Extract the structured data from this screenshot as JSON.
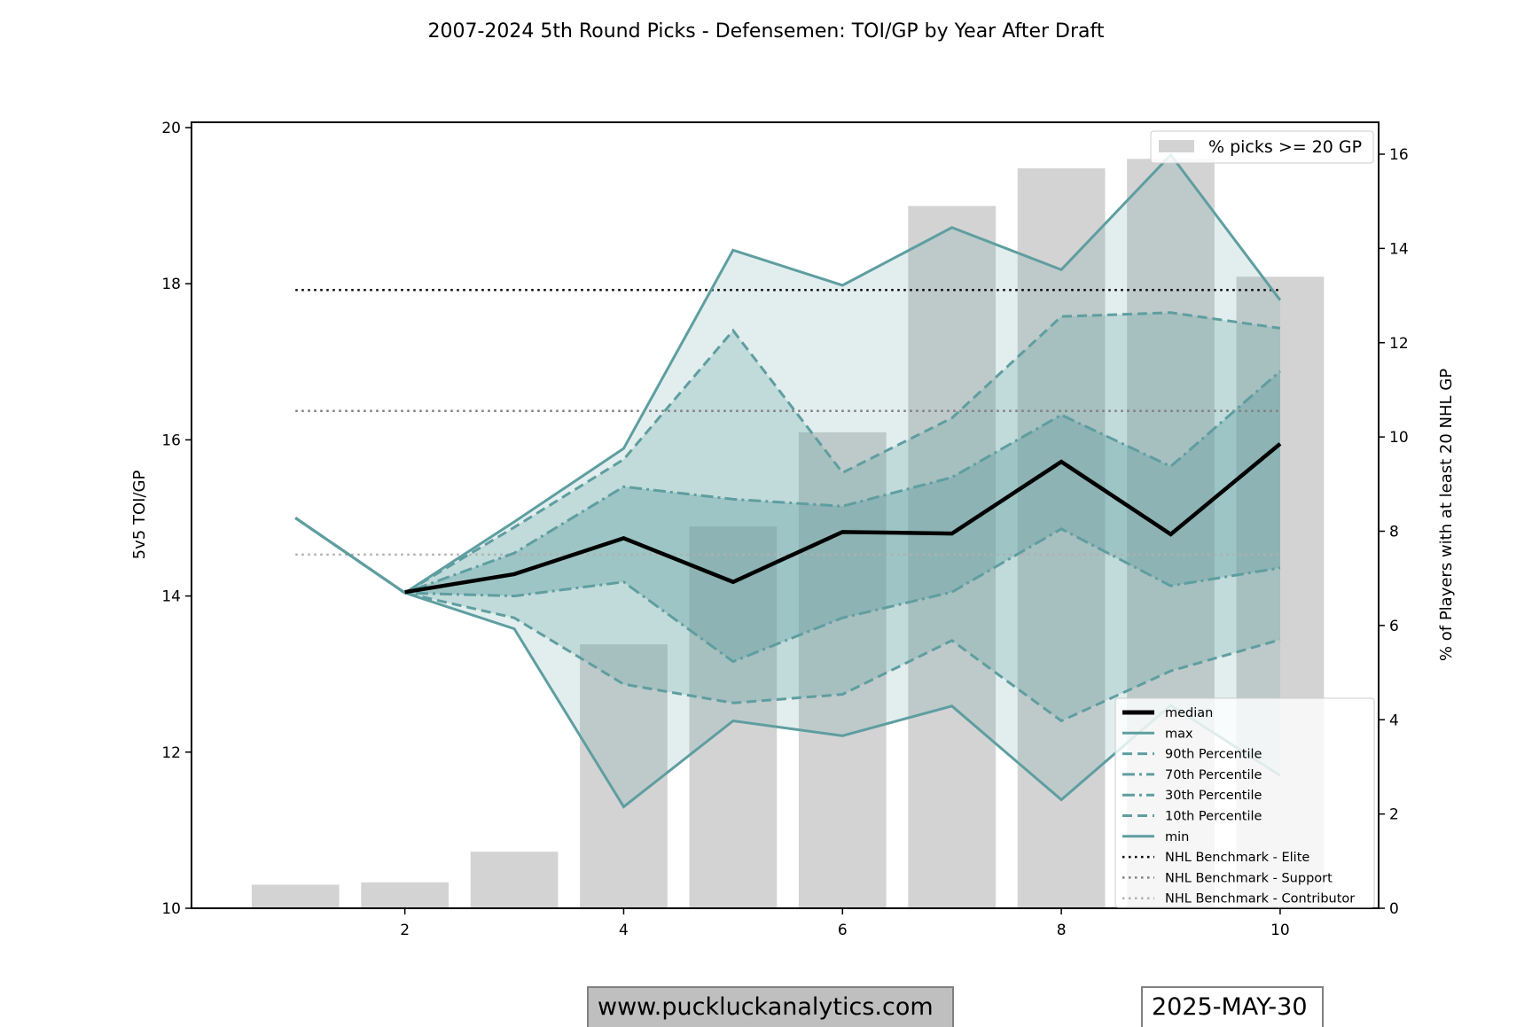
{
  "chart_data": {
    "type": "line",
    "title": "2007-2024 5th Round Picks - Defensemen: TOI/GP by Year After Draft",
    "xlabel": "",
    "ylabel": "5v5 TOI/GP",
    "y2label": "% of Players with at least 20 NHL GP",
    "xlim": [
      0.05,
      10.9
    ],
    "ylim": [
      10,
      20
    ],
    "y2lim": [
      0,
      16.6
    ],
    "xticks": [
      2,
      4,
      6,
      8,
      10
    ],
    "yticks": [
      10,
      12,
      14,
      16,
      18,
      20
    ],
    "y2ticks": [
      0,
      2,
      4,
      6,
      8,
      10,
      12,
      14,
      16
    ],
    "grid": false,
    "x": [
      1,
      2,
      3,
      4,
      5,
      6,
      7,
      8,
      9,
      10
    ],
    "bars": {
      "name": "% picks >= 20 GP",
      "axis": "right",
      "values": [
        0.5,
        0.55,
        1.2,
        5.6,
        8.1,
        10.1,
        14.9,
        15.7,
        15.9,
        13.4
      ],
      "color": "#d3d3d3"
    },
    "series": [
      {
        "name": "median",
        "style": "solid",
        "color": "#000000",
        "values": [
          null,
          14.05,
          14.28,
          14.74,
          14.18,
          14.82,
          14.8,
          15.72,
          14.79,
          15.95
        ]
      },
      {
        "name": "max",
        "style": "solid",
        "color": "#5f9ea0",
        "values": [
          15.0,
          14.04,
          14.95,
          15.89,
          18.43,
          17.98,
          18.72,
          18.18,
          19.65,
          17.79
        ]
      },
      {
        "name": "90th Percentile",
        "style": "dashed",
        "color": "#5f9ea0",
        "values": [
          15.0,
          14.04,
          14.88,
          15.75,
          17.4,
          15.58,
          16.28,
          17.58,
          17.63,
          17.43
        ]
      },
      {
        "name": "70th Percentile",
        "style": "dashdot",
        "color": "#5f9ea0",
        "values": [
          15.0,
          14.04,
          14.55,
          15.4,
          15.24,
          15.15,
          15.52,
          16.32,
          15.66,
          16.88
        ]
      },
      {
        "name": "30th Percentile",
        "style": "dashdot",
        "color": "#5f9ea0",
        "values": [
          15.0,
          14.04,
          14.0,
          14.18,
          13.16,
          13.72,
          14.05,
          14.86,
          14.13,
          14.36
        ]
      },
      {
        "name": "10th Percentile",
        "style": "dashed",
        "color": "#5f9ea0",
        "values": [
          15.0,
          14.04,
          13.72,
          12.87,
          12.63,
          12.74,
          13.43,
          12.4,
          13.04,
          13.44
        ]
      },
      {
        "name": "min",
        "style": "solid",
        "color": "#5f9ea0",
        "values": [
          15.0,
          14.04,
          13.58,
          11.3,
          12.4,
          12.21,
          12.59,
          11.39,
          12.6,
          11.7
        ]
      }
    ],
    "benchmarks": [
      {
        "name": "NHL Benchmark - Elite",
        "value": 17.92,
        "color": "#000000"
      },
      {
        "name": "NHL Benchmark - Support",
        "value": 16.37,
        "color": "#808080"
      },
      {
        "name": "NHL Benchmark - Contributor",
        "value": 14.53,
        "color": "#b0b0b0"
      }
    ],
    "benchmark_range": [
      1,
      10
    ],
    "bands": [
      {
        "between": [
          "max",
          "min"
        ],
        "color": "#5f9ea0",
        "opacity": 0.18
      },
      {
        "between": [
          "90th Percentile",
          "10th Percentile"
        ],
        "color": "#5f9ea0",
        "opacity": 0.25
      },
      {
        "between": [
          "70th Percentile",
          "30th Percentile"
        ],
        "color": "#5f9ea0",
        "opacity": 0.35
      }
    ],
    "legend_lines": [
      "median",
      "max",
      "90th Percentile",
      "70th Percentile",
      "30th Percentile",
      "10th Percentile",
      "min",
      "NHL Benchmark - Elite",
      "NHL Benchmark - Support",
      "NHL Benchmark - Contributor"
    ],
    "legend_placement": "lower-right",
    "bar_legend_placement": "upper-right"
  },
  "footer": {
    "website": "www.puckluckanalytics.com",
    "date": "2025-MAY-30"
  }
}
